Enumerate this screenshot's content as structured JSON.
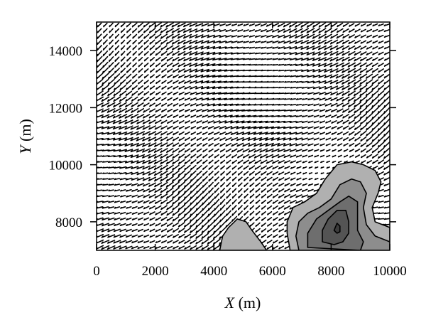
{
  "chart_data": {
    "type": "vector-field-contour",
    "xlabel": {
      "var": "X",
      "unit": " (m)"
    },
    "ylabel": {
      "var": "Y",
      "unit": " (m)"
    },
    "xlim": [
      0,
      10000
    ],
    "ylim": [
      7000,
      15000
    ],
    "x_ticks": [
      0,
      2000,
      4000,
      6000,
      8000,
      10000
    ],
    "x_tick_labels": [
      "0",
      "2000",
      "4000",
      "6000",
      "8000",
      "10000"
    ],
    "y_ticks": [
      8000,
      10000,
      12000,
      14000
    ],
    "y_tick_labels": [
      "8000",
      "10000",
      "12000",
      "14000"
    ],
    "grid": false,
    "vector_field": {
      "x_spacing": 200,
      "y_spacing": 200,
      "dominant_direction": "toward lower-left (west-southwest)",
      "calm_region_center": [
        7500,
        9700
      ]
    },
    "contour_fill_colors": [
      "#b0b0b0",
      "#8d8d8d",
      "#6e6e6e",
      "#545454",
      "#3c3c3c"
    ],
    "contours": [
      {
        "level": 1,
        "regions": [
          [
            [
              6600,
              7000
            ],
            [
              6500,
              7600
            ],
            [
              6500,
              8000
            ],
            [
              6700,
              8500
            ],
            [
              7100,
              8700
            ],
            [
              7500,
              9000
            ],
            [
              7800,
              9500
            ],
            [
              8200,
              10000
            ],
            [
              8700,
              10100
            ],
            [
              9100,
              10000
            ],
            [
              9500,
              9800
            ],
            [
              9700,
              9400
            ],
            [
              9600,
              9000
            ],
            [
              9400,
              8500
            ],
            [
              9500,
              8000
            ],
            [
              10000,
              7800
            ],
            [
              10000,
              7000
            ]
          ],
          [
            [
              4200,
              7000
            ],
            [
              4300,
              7500
            ],
            [
              4500,
              7800
            ],
            [
              4800,
              8100
            ],
            [
              5100,
              8000
            ],
            [
              5300,
              7700
            ],
            [
              5600,
              7300
            ],
            [
              5800,
              7000
            ]
          ]
        ]
      },
      {
        "level": 2,
        "regions": [
          [
            [
              6900,
              7000
            ],
            [
              6800,
              7500
            ],
            [
              6900,
              8000
            ],
            [
              7200,
              8300
            ],
            [
              7600,
              8500
            ],
            [
              8000,
              8800
            ],
            [
              8300,
              9300
            ],
            [
              8700,
              9500
            ],
            [
              9000,
              9400
            ],
            [
              9200,
              9000
            ],
            [
              9100,
              8500
            ],
            [
              9200,
              7900
            ],
            [
              9500,
              7500
            ],
            [
              10000,
              7300
            ],
            [
              10000,
              7000
            ]
          ]
        ]
      },
      {
        "level": 3,
        "regions": [
          [
            [
              7200,
              7100
            ],
            [
              7200,
              7600
            ],
            [
              7500,
              8100
            ],
            [
              7900,
              8400
            ],
            [
              8300,
              8700
            ],
            [
              8600,
              8900
            ],
            [
              8900,
              8700
            ],
            [
              8900,
              8200
            ],
            [
              8900,
              7700
            ],
            [
              9100,
              7300
            ],
            [
              9000,
              7000
            ]
          ]
        ]
      },
      {
        "level": 4,
        "regions": [
          [
            [
              7700,
              7300
            ],
            [
              7700,
              7700
            ],
            [
              7900,
              8100
            ],
            [
              8200,
              8400
            ],
            [
              8500,
              8400
            ],
            [
              8600,
              8000
            ],
            [
              8600,
              7600
            ],
            [
              8400,
              7300
            ],
            [
              8100,
              7200
            ]
          ]
        ]
      },
      {
        "level": 5,
        "regions": [
          [
            [
              8100,
              7700
            ],
            [
              8200,
              7950
            ],
            [
              8300,
              7850
            ],
            [
              8300,
              7650
            ],
            [
              8200,
              7600
            ]
          ]
        ]
      }
    ]
  }
}
